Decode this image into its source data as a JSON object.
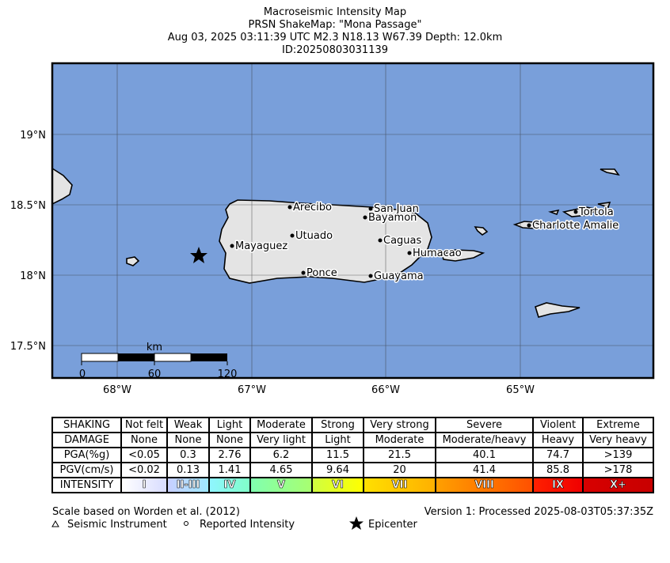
{
  "header": {
    "title": "Macroseismic Intensity Map",
    "subtitle": "PRSN ShakeMap: \"Mona Passage\"",
    "event": "Aug 03, 2025 03:11:39 UTC M2.3 N18.13 W67.39 Depth: 12.0km",
    "id": "ID:20250803031139"
  },
  "map": {
    "latitude_labels": [
      "19°N",
      "18.5°N",
      "18°N",
      "17.5°N"
    ],
    "longitude_labels": [
      "68°W",
      "67°W",
      "66°W",
      "65°W"
    ],
    "places": [
      "Arecibo",
      "San Juan",
      "Bayamon",
      "Utuado",
      "Caguas",
      "Mayaguez",
      "Humacao",
      "Ponce",
      "Guayama",
      "Tortola",
      "Charlotte Amalie"
    ],
    "scale_bar": {
      "unit": "km",
      "labels": [
        "0",
        "60",
        "120"
      ]
    }
  },
  "legend_table": {
    "rows": [
      [
        "SHAKING",
        "Not felt",
        "Weak",
        "Light",
        "Moderate",
        "Strong",
        "Very strong",
        "Severe",
        "Violent",
        "Extreme"
      ],
      [
        "DAMAGE",
        "None",
        "None",
        "None",
        "Very light",
        "Light",
        "Moderate",
        "Moderate/heavy",
        "Heavy",
        "Very heavy"
      ],
      [
        "PGA(%g)",
        "<0.05",
        "0.3",
        "2.76",
        "6.2",
        "11.5",
        "21.5",
        "40.1",
        "74.7",
        ">139"
      ],
      [
        "PGV(cm/s)",
        "<0.02",
        "0.13",
        "1.41",
        "4.65",
        "9.64",
        "20",
        "41.4",
        "85.8",
        ">178"
      ],
      [
        "INTENSITY",
        "I",
        "II-III",
        "IV",
        "V",
        "VI",
        "VII",
        "VIII",
        "IX",
        "X+"
      ]
    ]
  },
  "footer": {
    "scale_note": "Scale based on Worden et al. (2012)",
    "version": "Version 1: Processed 2025-08-03T05:37:35Z",
    "legend": [
      "Seismic Instrument",
      "Reported Intensity",
      "Epicenter"
    ]
  }
}
